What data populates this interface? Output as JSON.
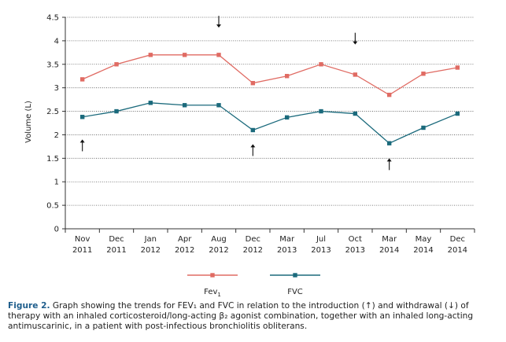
{
  "chart_data": {
    "type": "line",
    "categories": [
      [
        "Nov",
        "2011"
      ],
      [
        "Dec",
        "2011"
      ],
      [
        "Jan",
        "2012"
      ],
      [
        "Apr",
        "2012"
      ],
      [
        "Aug",
        "2012"
      ],
      [
        "Dec",
        "2012"
      ],
      [
        "Mar",
        "2013"
      ],
      [
        "Jul",
        "2013"
      ],
      [
        "Oct",
        "2013"
      ],
      [
        "Mar",
        "2014"
      ],
      [
        "May",
        "2014"
      ],
      [
        "Dec",
        "2014"
      ]
    ],
    "series": [
      {
        "name": "Fev",
        "name_subscript": "1",
        "color": "#e06b63",
        "values": [
          3.18,
          3.5,
          3.7,
          3.7,
          3.7,
          3.1,
          3.25,
          3.5,
          3.28,
          2.85,
          3.3,
          3.43
        ]
      },
      {
        "name": "FVC",
        "color": "#1b6a7c",
        "values": [
          2.38,
          2.5,
          2.68,
          2.63,
          2.63,
          2.1,
          2.37,
          2.5,
          2.45,
          1.82,
          2.15,
          2.45
        ]
      }
    ],
    "ylabel": "Volume (L)",
    "xlabel": "",
    "ylim": [
      0,
      4.5
    ],
    "yticks": [
      "0",
      "0.5",
      "1",
      "1.5",
      "2",
      "2.5",
      "3",
      "3.5",
      "4",
      "4.5"
    ],
    "grid": "horizontal dotted",
    "legend_position": "bottom",
    "annotations": [
      {
        "type": "arrow-up",
        "category_index": 0,
        "value": 1.9
      },
      {
        "type": "arrow-down",
        "category_index": 4,
        "value": 4.28
      },
      {
        "type": "arrow-up",
        "category_index": 5,
        "value": 1.8
      },
      {
        "type": "arrow-down",
        "category_index": 8,
        "value": 3.92
      },
      {
        "type": "arrow-up",
        "category_index": 9,
        "value": 1.5
      }
    ]
  },
  "caption": {
    "label": "Figure 2.",
    "text": " Graph showing the trends for FEV₁ and FVC in relation to the introduction (↑) and withdrawal (↓) of therapy with an inhaled corticosteroid/long-acting β₂ agonist combination, together with an inhaled long-acting antimuscarinic, in a patient with post-infectious bronchiolitis obliterans."
  }
}
